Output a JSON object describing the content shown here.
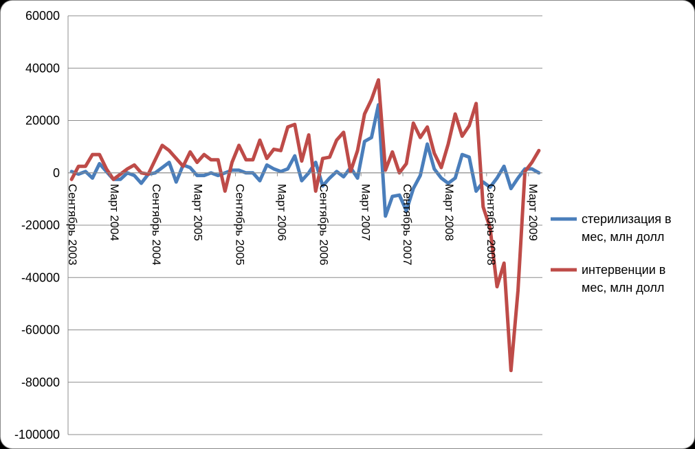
{
  "chart_data": {
    "type": "line",
    "title": "",
    "xlabel": "",
    "ylabel": "",
    "ylim": [
      -100000,
      60000
    ],
    "y_ticks": [
      "60000",
      "40000",
      "20000",
      "0",
      "-20000",
      "-40000",
      "-60000",
      "-80000",
      "-100000"
    ],
    "y_tick_values": [
      60000,
      40000,
      20000,
      0,
      -20000,
      -40000,
      -60000,
      -80000,
      -100000
    ],
    "grid": true,
    "legend_position": "right",
    "x_tick_labels": [
      {
        "label": "Сентябрь 2003",
        "index": 0
      },
      {
        "label": "Март 2004",
        "index": 6
      },
      {
        "label": "Сентябрь 2004",
        "index": 12
      },
      {
        "label": "Март 2005",
        "index": 18
      },
      {
        "label": "Сентябрь 2005",
        "index": 24
      },
      {
        "label": "Март 2006",
        "index": 30
      },
      {
        "label": "Сентябрь 2006",
        "index": 36
      },
      {
        "label": "Март 2007",
        "index": 42
      },
      {
        "label": "Сентябрь 2007",
        "index": 48
      },
      {
        "label": "Март 2008",
        "index": 54
      },
      {
        "label": "Сентябрь 2008",
        "index": 60
      },
      {
        "label": "Март 2009",
        "index": 66
      }
    ],
    "series": [
      {
        "name": "стерилизация в мес, млн долл",
        "color": "#4a7ebb",
        "values": [
          500,
          -500,
          500,
          -2000,
          3500,
          500,
          -2500,
          -2500,
          0,
          -1000,
          -4000,
          -500,
          0,
          2000,
          4000,
          -3500,
          3000,
          2000,
          -1000,
          -1000,
          0,
          -1000,
          0,
          1000,
          1000,
          0,
          0,
          -3000,
          3000,
          1500,
          500,
          1500,
          6500,
          -3000,
          0,
          4000,
          -5000,
          -2000,
          500,
          -1500,
          2000,
          -2000,
          12000,
          13500,
          26000,
          -16500,
          -9000,
          -8500,
          -14500,
          -6000,
          -1000,
          11000,
          1500,
          -2000,
          -4000,
          -2000,
          7000,
          6000,
          -7000,
          -3500,
          -5500,
          -2000,
          2500,
          -6000,
          -2000,
          1500,
          1500,
          0
        ]
      },
      {
        "name": "интервенции в мес, млн долл",
        "color": "#be4b48",
        "values": [
          -2500,
          2500,
          2500,
          7000,
          7000,
          1500,
          -2500,
          -500,
          1500,
          3000,
          0,
          -500,
          5000,
          10500,
          8500,
          5500,
          2500,
          8000,
          4000,
          7000,
          5000,
          5000,
          -7000,
          4000,
          10500,
          5000,
          5000,
          12500,
          5500,
          9000,
          8500,
          17500,
          18500,
          4500,
          14500,
          -7000,
          5500,
          6000,
          12500,
          15500,
          500,
          8500,
          22500,
          28000,
          35500,
          1000,
          8000,
          0,
          3500,
          19000,
          13500,
          17500,
          7500,
          2000,
          11000,
          22500,
          14000,
          18000,
          26500,
          -13000,
          -21000,
          -43500,
          -34500,
          -75500,
          -45000,
          500,
          4000,
          8500
        ]
      }
    ],
    "legend": [
      {
        "line1": "стерилизация в",
        "line2": "мес, млн долл"
      },
      {
        "line1": "интервенции в",
        "line2": "мес, млн долл"
      }
    ]
  }
}
